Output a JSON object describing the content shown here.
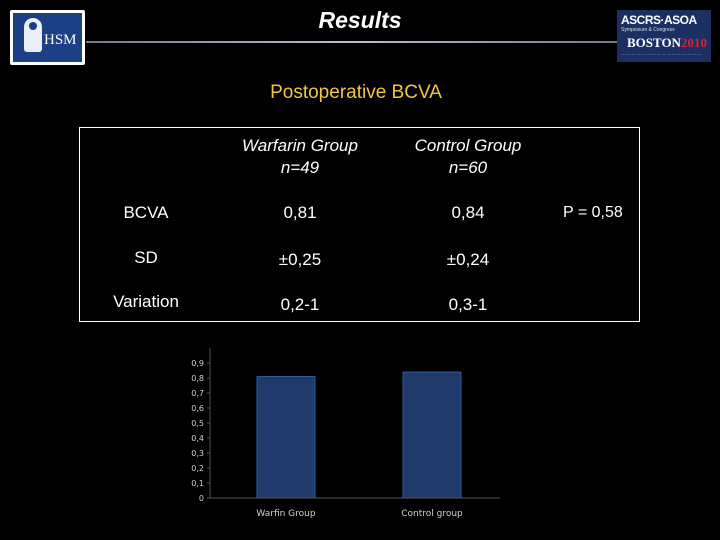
{
  "header": {
    "title": "Results",
    "logo_left": "HSM",
    "logo_right": {
      "line1": "ASCRS·ASOA",
      "line2": "Symposium & Congress",
      "city": "BOSTON",
      "year": "2010"
    }
  },
  "subtitle": "Postoperative BCVA",
  "table": {
    "columns": [
      {
        "line1": "Warfarin Group",
        "line2": "n=49"
      },
      {
        "line1": "Control Group",
        "line2": "n=60"
      }
    ],
    "rows": [
      {
        "label": "BCVA",
        "values": [
          "0,81",
          "0,84"
        ]
      },
      {
        "label": "SD",
        "values": [
          "±0,25",
          "±0,24"
        ]
      },
      {
        "label": "Variation",
        "values": [
          "0,2-1",
          "0,3-1"
        ]
      }
    ],
    "p_value": "P = 0,58"
  },
  "colors": {
    "bar": "#1f3a6b",
    "bar_edge": "#2c5aa0",
    "subtitle": "#f4c542",
    "axis": "#555555"
  },
  "chart_data": {
    "type": "bar",
    "categories": [
      "Warfin Group",
      "Control group"
    ],
    "values": [
      0.81,
      0.84
    ],
    "ylim": [
      0,
      1
    ],
    "yticks": [
      "0",
      "0,1",
      "0,2",
      "0,3",
      "0,4",
      "0,5",
      "0,6",
      "0,7",
      "0,8",
      "0,9"
    ],
    "title": "",
    "xlabel": "",
    "ylabel": "",
    "grid": false,
    "legend": "none"
  }
}
